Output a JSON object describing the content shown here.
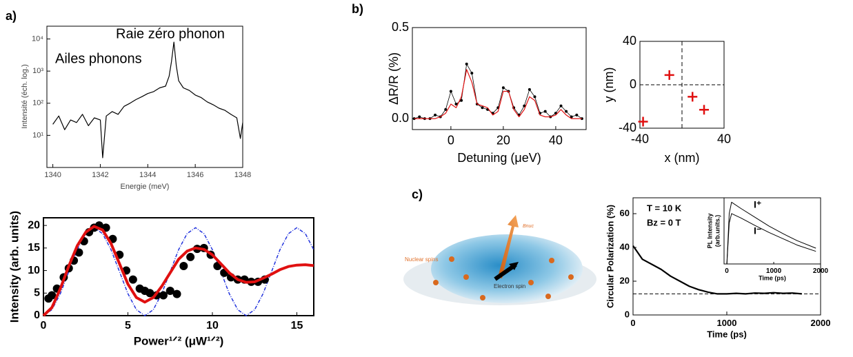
{
  "panel_labels": [
    "a)",
    "b)",
    "c)"
  ],
  "illustration": {
    "labels": [
      "Nuclear spins",
      "Electron spin",
      "Bnuc"
    ]
  },
  "chart_data": [
    {
      "type": "line",
      "xlabel": "Energie (meV)",
      "ylabel": "Intensité (éch. log.)",
      "log_y": true,
      "xlim": [
        1339.75,
        1348
      ],
      "ylim": [
        1,
        25000
      ],
      "xticks": [
        1340,
        1342,
        1344,
        1346,
        1348
      ],
      "yticks": [
        {
          "value": 10,
          "label": "10¹"
        },
        {
          "value": 100,
          "label": "10²"
        },
        {
          "value": 1000,
          "label": "10³"
        },
        {
          "value": 10000,
          "label": "10⁴"
        }
      ],
      "annotations": [
        "Raie zéro phonon",
        "Ailes phonons"
      ],
      "series": [
        {
          "style": "line",
          "color": "#000000",
          "x": [
            1340,
            1340.25,
            1340.5,
            1340.75,
            1341,
            1341.25,
            1341.5,
            1341.75,
            1342,
            1342.1,
            1342.25,
            1342.5,
            1342.75,
            1343,
            1343.25,
            1343.5,
            1343.75,
            1344,
            1344.25,
            1344.5,
            1344.75,
            1344.9,
            1345,
            1345.1,
            1345.2,
            1345.3,
            1345.5,
            1345.75,
            1346,
            1346.25,
            1346.5,
            1346.75,
            1347,
            1347.25,
            1347.5,
            1347.75,
            1347.9,
            1348
          ],
          "values": [
            22,
            40,
            15,
            30,
            25,
            45,
            20,
            35,
            30,
            2,
            40,
            55,
            45,
            80,
            100,
            130,
            160,
            200,
            230,
            300,
            340,
            700,
            2000,
            8000,
            1500,
            500,
            300,
            250,
            180,
            150,
            110,
            90,
            70,
            60,
            45,
            35,
            8,
            25
          ]
        }
      ]
    },
    {
      "type": "scatter",
      "xlabel": "Power¹ᐟ² (μW¹ᐟ²)",
      "ylabel": "Intensity (arb. units)",
      "xlim": [
        0,
        16
      ],
      "ylim": [
        0,
        21.7
      ],
      "xticks": [
        0,
        5,
        10,
        15
      ],
      "yticks": [
        0,
        5,
        10,
        15,
        20
      ],
      "series": [
        {
          "style": "dashed",
          "color": "#2233dd",
          "x": [
            0,
            0.5,
            1,
            1.5,
            2,
            2.5,
            3,
            3.5,
            4,
            4.5,
            5,
            5.5,
            6,
            6.5,
            7,
            7.5,
            8,
            8.5,
            9,
            9.5,
            10,
            10.5,
            11,
            11.5,
            12,
            12.5,
            13,
            13.5,
            14,
            14.5,
            15,
            15.5,
            16
          ],
          "values": [
            0,
            1.31,
            4.88,
            9.75,
            14.63,
            18.19,
            19.5,
            18.19,
            14.63,
            9.75,
            4.88,
            1.31,
            0,
            1.31,
            4.88,
            9.75,
            14.63,
            18.19,
            19.5,
            18.19,
            14.63,
            9.75,
            4.88,
            1.31,
            0,
            1.31,
            4.88,
            9.75,
            14.63,
            18.19,
            19.5,
            18.19,
            14.63
          ]
        },
        {
          "style": "points",
          "color": "#000000",
          "x": [
            0.3,
            0.5,
            0.8,
            1.2,
            1.5,
            1.8,
            2.1,
            2.4,
            2.7,
            3.0,
            3.3,
            3.7,
            4.1,
            4.5,
            4.9,
            5.3,
            5.7,
            6.0,
            6.3,
            6.7,
            7.1,
            7.5,
            7.9,
            8.3,
            8.7,
            9.1,
            9.5,
            9.9,
            10.3,
            10.7,
            11.1,
            11.5,
            11.9,
            12.3,
            12.7,
            13.1
          ],
          "values": [
            3.8,
            4.5,
            6,
            8.5,
            10.5,
            12.2,
            14,
            16.5,
            18.5,
            19.5,
            20,
            19.5,
            17,
            13.5,
            10,
            8,
            6,
            5.5,
            5,
            4.5,
            4.5,
            5.5,
            4.8,
            11,
            13,
            14.8,
            15,
            13.5,
            11,
            9.5,
            8.5,
            8,
            8,
            7.5,
            7.5,
            8
          ]
        },
        {
          "style": "thick",
          "color": "#e01010",
          "x": [
            0,
            0.5,
            1,
            1.5,
            2,
            2.5,
            3,
            3.5,
            4,
            4.5,
            5,
            5.5,
            6,
            6.5,
            7,
            7.5,
            8,
            8.5,
            9,
            9.5,
            10,
            10.5,
            11,
            11.5,
            12,
            12.5,
            13,
            13.5,
            14,
            14.5,
            15,
            15.5,
            16
          ],
          "values": [
            0,
            1.8,
            6,
            11,
            15.5,
            18.5,
            19.8,
            19,
            16,
            11.5,
            7,
            4,
            3,
            4,
            6.5,
            9.5,
            12.5,
            14.3,
            15,
            14.7,
            13.5,
            11.5,
            9.5,
            8,
            7.4,
            7.5,
            8.3,
            9.2,
            10.2,
            10.9,
            11.2,
            11.3,
            11.1
          ]
        }
      ]
    },
    {
      "type": "line",
      "xlabel": "Detuning (μeV)",
      "ylabel": "ΔR/R (%)",
      "xlim": [
        -14.7,
        51.6
      ],
      "ylim": [
        -0.06,
        0.5
      ],
      "xticks": [
        0,
        20,
        40
      ],
      "yticks": [
        {
          "value": 0,
          "label": "0.0"
        },
        {
          "value": 0.5,
          "label": "0.5"
        }
      ],
      "series": [
        {
          "style": "points-line",
          "color": "#000000",
          "x": [
            -14,
            -12,
            -10,
            -8,
            -6,
            -4,
            -2,
            0,
            2,
            4,
            6,
            8,
            10,
            12,
            14,
            16,
            18,
            20,
            22,
            24,
            26,
            28,
            30,
            32,
            34,
            36,
            38,
            40,
            42,
            44,
            46,
            48,
            50
          ],
          "values": [
            0.0,
            0.01,
            0.0,
            0.0,
            0.02,
            0.01,
            0.05,
            0.15,
            0.08,
            0.1,
            0.3,
            0.25,
            0.08,
            0.06,
            0.05,
            0.03,
            0.06,
            0.17,
            0.15,
            0.06,
            0.02,
            0.07,
            0.16,
            0.12,
            0.03,
            0.04,
            0.01,
            0.03,
            0.07,
            0.04,
            0.01,
            0.02,
            0.0
          ]
        },
        {
          "style": "line",
          "color": "#e01010",
          "x": [
            -14,
            -12,
            -10,
            -8,
            -6,
            -4,
            -2,
            0,
            2,
            4,
            6,
            8,
            10,
            12,
            14,
            16,
            18,
            20,
            22,
            24,
            26,
            28,
            30,
            32,
            34,
            36,
            38,
            40,
            42,
            44,
            46,
            48,
            50
          ],
          "values": [
            0,
            0,
            0,
            0,
            0,
            0.01,
            0.03,
            0.08,
            0.06,
            0.12,
            0.27,
            0.2,
            0.08,
            0.07,
            0.06,
            0.02,
            0.04,
            0.15,
            0.15,
            0.05,
            0.01,
            0.05,
            0.12,
            0.1,
            0.02,
            0.01,
            0.01,
            0.02,
            0.05,
            0.02,
            0.0,
            0.0,
            0.0
          ]
        }
      ]
    },
    {
      "type": "scatter",
      "xlabel": "x (nm)",
      "ylabel": "y (nm)",
      "xlim": [
        -40,
        40
      ],
      "ylim": [
        -40,
        40
      ],
      "xticks": [
        -40,
        40
      ],
      "yticks": [
        -40,
        0,
        40
      ],
      "ref_x": [
        0
      ],
      "ref_y": [
        0
      ],
      "series": [
        {
          "style": "cross",
          "color": "#e01010",
          "x": [
            -37,
            -12,
            10,
            21
          ],
          "values": [
            -34,
            9,
            -11,
            -23
          ]
        }
      ]
    },
    {
      "type": "line",
      "xlabel": "Time (ps)",
      "ylabel": "Circular Polarization (%)",
      "xlim": [
        0,
        2000
      ],
      "ylim": [
        0,
        69.4
      ],
      "xticks": [
        0,
        1000,
        2000
      ],
      "yticks": [
        0,
        20,
        40,
        60
      ],
      "ref_y": [
        12.5
      ],
      "annotations": [
        "T = 10 K",
        "Bz = 0 T"
      ],
      "series": [
        {
          "style": "thick",
          "color": "#000000",
          "x": [
            0,
            50,
            100,
            200,
            300,
            400,
            500,
            600,
            700,
            800,
            900,
            1000,
            1100,
            1200,
            1300,
            1400,
            1500,
            1600,
            1700,
            1800
          ],
          "values": [
            41,
            37,
            33,
            30,
            27,
            23,
            20,
            17,
            15,
            13.5,
            12.5,
            12.5,
            12.8,
            12.5,
            13,
            12.8,
            13.2,
            12.8,
            13,
            12.5
          ]
        }
      ]
    },
    {
      "type": "line",
      "xlabel": "Time (ps)",
      "ylabel": [
        "PL Intensity",
        "(arb.units.)"
      ],
      "xlim": [
        -60,
        2000
      ],
      "ylim": [
        0,
        1.05
      ],
      "xticks": [
        0,
        1000,
        2000
      ],
      "annotations": [
        "I⁺",
        "I⁻"
      ],
      "series": [
        {
          "style": "line",
          "color": "#000000",
          "x": [
            0,
            50,
            100,
            300,
            600,
            900,
            1200,
            1500,
            1900
          ],
          "values": [
            0,
            0.8,
            0.98,
            0.88,
            0.74,
            0.6,
            0.48,
            0.37,
            0.25
          ]
        },
        {
          "style": "line",
          "color": "#000000",
          "x": [
            0,
            50,
            100,
            300,
            600,
            900,
            1200,
            1500,
            1900
          ],
          "values": [
            0,
            0.65,
            0.8,
            0.73,
            0.61,
            0.5,
            0.4,
            0.3,
            0.2
          ]
        }
      ]
    }
  ]
}
